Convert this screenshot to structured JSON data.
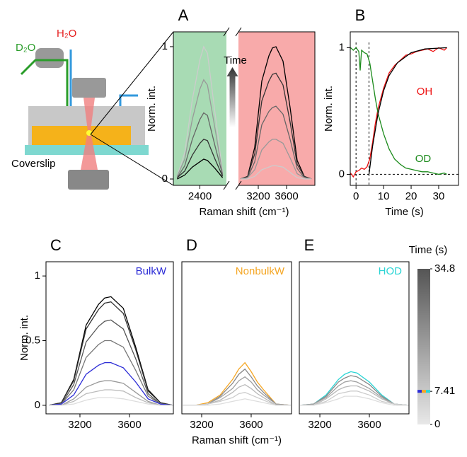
{
  "schematic": {
    "labels": [
      "D₂O",
      "H₂O",
      "Coverslip"
    ]
  },
  "chart_data": [
    {
      "type": "line",
      "panel": "A",
      "xlabel": "Raman shift (cm⁻¹)",
      "ylabel": "Norm. int.",
      "annotation": "Time",
      "xsegments": [
        [
          2050,
          2750
        ],
        [
          2920,
          4000
        ]
      ],
      "segment_colors": [
        "#a8dbb4",
        "#f8aaaa"
      ],
      "ylim": [
        -0.048,
        1.112
      ],
      "yticks": [
        0,
        1
      ],
      "xticks": [
        2400,
        3200,
        3600
      ],
      "series": [
        {
          "color": "#cccccc",
          "x": [
            2100,
            2200,
            2300,
            2400,
            2450,
            2500,
            2600,
            2700
          ],
          "values": [
            0.02,
            0.2,
            0.6,
            0.9,
            1.0,
            0.95,
            0.5,
            0.05
          ]
        },
        {
          "color": "#999999",
          "x": [
            2100,
            2200,
            2300,
            2400,
            2450,
            2500,
            2600,
            2700
          ],
          "values": [
            0.02,
            0.15,
            0.45,
            0.68,
            0.75,
            0.71,
            0.38,
            0.04
          ]
        },
        {
          "color": "#666666",
          "x": [
            2100,
            2200,
            2300,
            2400,
            2450,
            2500,
            2600,
            2700
          ],
          "values": [
            0.01,
            0.1,
            0.3,
            0.45,
            0.5,
            0.48,
            0.25,
            0.03
          ]
        },
        {
          "color": "#333333",
          "x": [
            2100,
            2200,
            2300,
            2400,
            2450,
            2500,
            2600,
            2700
          ],
          "values": [
            0.01,
            0.06,
            0.18,
            0.27,
            0.3,
            0.29,
            0.15,
            0.02
          ]
        },
        {
          "color": "#000000",
          "x": [
            2100,
            2200,
            2300,
            2400,
            2450,
            2500,
            2600,
            2700
          ],
          "values": [
            0.0,
            0.03,
            0.09,
            0.13,
            0.15,
            0.14,
            0.08,
            0.01
          ]
        },
        {
          "color": "#000000",
          "x": [
            2950,
            3050,
            3150,
            3250,
            3350,
            3400,
            3450,
            3550,
            3650,
            3750,
            3850,
            3950
          ],
          "values": [
            0,
            0.02,
            0.24,
            0.74,
            0.93,
            0.99,
            1.0,
            0.89,
            0.54,
            0.14,
            0.02,
            0
          ]
        },
        {
          "color": "#333333",
          "x": [
            2950,
            3050,
            3150,
            3250,
            3350,
            3400,
            3450,
            3550,
            3650,
            3750,
            3850,
            3950
          ],
          "values": [
            0,
            0.02,
            0.19,
            0.59,
            0.74,
            0.79,
            0.8,
            0.71,
            0.43,
            0.11,
            0.02,
            0
          ]
        },
        {
          "color": "#666666",
          "x": [
            2950,
            3050,
            3150,
            3250,
            3350,
            3400,
            3450,
            3550,
            3650,
            3750,
            3850,
            3950
          ],
          "values": [
            0,
            0.01,
            0.13,
            0.41,
            0.51,
            0.54,
            0.55,
            0.49,
            0.3,
            0.08,
            0.01,
            0
          ]
        },
        {
          "color": "#999999",
          "x": [
            2950,
            3050,
            3150,
            3250,
            3350,
            3400,
            3450,
            3550,
            3650,
            3750,
            3850,
            3950
          ],
          "values": [
            0,
            0.01,
            0.07,
            0.22,
            0.28,
            0.3,
            0.3,
            0.27,
            0.16,
            0.04,
            0.01,
            0
          ]
        },
        {
          "color": "#cccccc",
          "x": [
            2950,
            3050,
            3150,
            3250,
            3350,
            3400,
            3450,
            3550,
            3650,
            3750,
            3850,
            3950
          ],
          "values": [
            0,
            0,
            0.02,
            0.07,
            0.09,
            0.1,
            0.1,
            0.09,
            0.05,
            0.01,
            0,
            0
          ]
        }
      ]
    },
    {
      "type": "line",
      "panel": "B",
      "xlabel": "Time (s)",
      "ylabel": "Norm. int.",
      "xlim": [
        -2.1,
        37.2
      ],
      "xticks": [
        0,
        10,
        20,
        30
      ],
      "ylim": [
        -0.087,
        1.125
      ],
      "yticks": [
        0,
        1
      ],
      "vlines": [
        0,
        4.7
      ],
      "hlines": [
        0
      ],
      "series": [
        {
          "name": "OH",
          "color": "#ee1111",
          "x": [
            -2,
            -1,
            0,
            1,
            2,
            3,
            4,
            5,
            6,
            7,
            8,
            10,
            12,
            14,
            16,
            18,
            20,
            22,
            24,
            26,
            28,
            30,
            32,
            33
          ],
          "values": [
            0.01,
            -0.02,
            0.02,
            0.03,
            0.05,
            0.04,
            0.06,
            0.12,
            0.25,
            0.4,
            0.52,
            0.68,
            0.8,
            0.86,
            0.9,
            0.94,
            0.95,
            0.97,
            0.98,
            0.99,
            0.97,
            1.0,
            0.98,
            1.0
          ]
        },
        {
          "name": "OD",
          "color": "#1a8a1a",
          "x": [
            -2,
            -1,
            0,
            1,
            1.5,
            2,
            3,
            4,
            5,
            6,
            7,
            8,
            10,
            12,
            14,
            16,
            18,
            20,
            22,
            24,
            26,
            28,
            30,
            32,
            33
          ],
          "values": [
            1.0,
            0.98,
            1.0,
            0.97,
            0.82,
            0.98,
            0.96,
            0.95,
            0.88,
            0.74,
            0.6,
            0.48,
            0.32,
            0.2,
            0.12,
            0.08,
            0.05,
            0.04,
            0.03,
            0.02,
            0.02,
            0.01,
            0.0,
            0.01,
            0.0
          ]
        },
        {
          "color": "#000000",
          "x": [
            4.7,
            6,
            8,
            10,
            12,
            15,
            20,
            25,
            33
          ],
          "values": [
            0,
            0.22,
            0.48,
            0.66,
            0.78,
            0.88,
            0.96,
            0.99,
            1.0
          ]
        }
      ]
    },
    {
      "type": "line",
      "panel": "C",
      "ylabel": "Norm. int.",
      "label": "BulkW",
      "label_color": "#2b2bd6",
      "xlim": [
        2926,
        3954
      ],
      "xticks": [
        3200,
        3600
      ],
      "ylim": [
        -0.066,
        1.11
      ],
      "yticks": [
        0,
        0.5,
        1
      ],
      "x": [
        2950,
        3050,
        3150,
        3250,
        3350,
        3400,
        3450,
        3550,
        3650,
        3750,
        3850,
        3950
      ],
      "series": [
        {
          "color": "#000000",
          "values": [
            0,
            0.02,
            0.2,
            0.62,
            0.78,
            0.83,
            0.84,
            0.75,
            0.45,
            0.12,
            0.02,
            0
          ]
        },
        {
          "color": "#333333",
          "values": [
            0,
            0.02,
            0.19,
            0.59,
            0.74,
            0.79,
            0.8,
            0.71,
            0.43,
            0.11,
            0.02,
            0
          ]
        },
        {
          "color": "#555555",
          "values": [
            0,
            0.01,
            0.16,
            0.49,
            0.61,
            0.65,
            0.66,
            0.59,
            0.36,
            0.09,
            0.01,
            0
          ]
        },
        {
          "color": "#777777",
          "values": [
            0,
            0.01,
            0.12,
            0.37,
            0.47,
            0.5,
            0.5,
            0.45,
            0.27,
            0.07,
            0.01,
            0
          ]
        },
        {
          "color": "#2b2bd6",
          "values": [
            0,
            0.01,
            0.08,
            0.24,
            0.31,
            0.33,
            0.33,
            0.29,
            0.18,
            0.05,
            0.01,
            0
          ]
        },
        {
          "color": "#999999",
          "values": [
            0,
            0,
            0.05,
            0.14,
            0.18,
            0.19,
            0.19,
            0.17,
            0.1,
            0.03,
            0,
            0
          ]
        },
        {
          "color": "#bbbbbb",
          "values": [
            0,
            0,
            0.03,
            0.09,
            0.11,
            0.12,
            0.12,
            0.11,
            0.06,
            0.02,
            0,
            0
          ]
        },
        {
          "color": "#dddddd",
          "values": [
            0,
            0,
            0.01,
            0.04,
            0.06,
            0.06,
            0.06,
            0.05,
            0.03,
            0.01,
            0,
            0
          ]
        }
      ]
    },
    {
      "type": "line",
      "panel": "D",
      "xlabel": "Raman shift (cm⁻¹)",
      "label": "NonbulkW",
      "label_color": "#f5a623",
      "xlim": [
        3040,
        3926
      ],
      "xticks": [
        3200,
        3600
      ],
      "ylim": [
        -0.066,
        1.11
      ],
      "x": [
        3050,
        3150,
        3250,
        3350,
        3450,
        3500,
        3550,
        3600,
        3650,
        3700,
        3800,
        3920
      ],
      "series": [
        {
          "color": "#f5a623",
          "values": [
            0,
            0,
            0.02,
            0.08,
            0.2,
            0.28,
            0.33,
            0.26,
            0.18,
            0.12,
            0.01,
            0
          ]
        },
        {
          "color": "#888888",
          "values": [
            0,
            0,
            0.01,
            0.07,
            0.17,
            0.24,
            0.28,
            0.22,
            0.15,
            0.1,
            0.01,
            0
          ]
        },
        {
          "color": "#a0a0a0",
          "values": [
            0,
            0,
            0.01,
            0.06,
            0.13,
            0.19,
            0.22,
            0.18,
            0.12,
            0.08,
            0.01,
            0
          ]
        },
        {
          "color": "#b8b8b8",
          "values": [
            0,
            0,
            0.01,
            0.04,
            0.1,
            0.14,
            0.16,
            0.13,
            0.09,
            0.06,
            0,
            0
          ]
        },
        {
          "color": "#cccccc",
          "values": [
            0,
            0,
            0.01,
            0.03,
            0.06,
            0.09,
            0.1,
            0.08,
            0.06,
            0.04,
            0,
            0
          ]
        },
        {
          "color": "#dddddd",
          "values": [
            0,
            0,
            0,
            0.01,
            0.03,
            0.04,
            0.05,
            0.04,
            0.03,
            0.02,
            0,
            0
          ]
        }
      ]
    },
    {
      "type": "line",
      "panel": "E",
      "label": "HOD",
      "label_color": "#2ad4d4",
      "xlim": [
        3034,
        3920
      ],
      "xticks": [
        3200,
        3600
      ],
      "ylim": [
        -0.066,
        1.11
      ],
      "x": [
        3040,
        3150,
        3250,
        3350,
        3400,
        3450,
        3500,
        3600,
        3700,
        3800,
        3920
      ],
      "series": [
        {
          "color": "#2ad4d4",
          "values": [
            0,
            0.01,
            0.08,
            0.2,
            0.24,
            0.26,
            0.25,
            0.18,
            0.08,
            0.01,
            0
          ]
        },
        {
          "color": "#888888",
          "values": [
            0,
            0.01,
            0.07,
            0.18,
            0.21,
            0.23,
            0.22,
            0.16,
            0.07,
            0.01,
            0
          ]
        },
        {
          "color": "#a0a0a0",
          "values": [
            0,
            0.01,
            0.06,
            0.15,
            0.18,
            0.19,
            0.18,
            0.13,
            0.06,
            0.01,
            0
          ]
        },
        {
          "color": "#b8b8b8",
          "values": [
            0,
            0,
            0.05,
            0.12,
            0.14,
            0.15,
            0.15,
            0.11,
            0.05,
            0.01,
            0
          ]
        },
        {
          "color": "#cccccc",
          "values": [
            0,
            0,
            0.03,
            0.09,
            0.1,
            0.11,
            0.11,
            0.08,
            0.03,
            0.01,
            0
          ]
        },
        {
          "color": "#dddddd",
          "values": [
            0,
            0,
            0.02,
            0.05,
            0.07,
            0.07,
            0.07,
            0.05,
            0.02,
            0,
            0
          ]
        }
      ]
    },
    {
      "type": "colorbar",
      "label": "Time (s)",
      "clim": [
        0,
        34.8
      ],
      "ticks": [
        34.8,
        7.41,
        0
      ],
      "colors": [
        "#e8e8e8",
        "#555555"
      ],
      "marker": 7.41,
      "marker_colors": [
        "#2b2bd6",
        "#f5a623",
        "#2ad4d4"
      ]
    }
  ]
}
